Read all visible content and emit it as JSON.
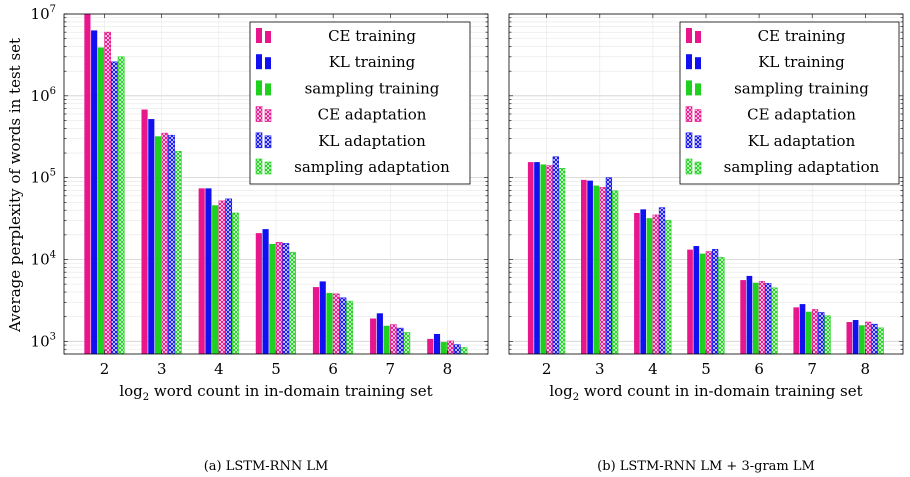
{
  "y_axis_label": "Average perplexity of words in test set",
  "legend": {
    "entries": [
      {
        "label": "CE training",
        "color": "#e8168c",
        "pattern": "solid"
      },
      {
        "label": "KL training",
        "color": "#1010f0",
        "pattern": "solid"
      },
      {
        "label": "sampling training",
        "color": "#1fd01f",
        "pattern": "solid"
      },
      {
        "label": "CE adaptation",
        "color": "#e8168c",
        "pattern": "crosshatch"
      },
      {
        "label": "KL adaptation",
        "color": "#1010f0",
        "pattern": "crosshatch"
      },
      {
        "label": "sampling adaptation",
        "color": "#1fd01f",
        "pattern": "crosshatch"
      }
    ]
  },
  "chart_data": [
    {
      "type": "bar",
      "caption": "(a) LSTM-RNN LM",
      "xlabel_main": "log",
      "xlabel_sub": "2",
      "xlabel_rest": " word count in in-domain training set",
      "ylabel": "Average perplexity of words in test set",
      "yscale": "log",
      "ylim": [
        700,
        10000000
      ],
      "grid": true,
      "legend_position": "top-right",
      "categories": [
        "2",
        "3",
        "4",
        "5",
        "6",
        "7",
        "8"
      ],
      "series": [
        {
          "name": "CE training",
          "values": [
            10000000,
            680000,
            74000,
            21000,
            4600,
            1900,
            1070
          ]
        },
        {
          "name": "KL training",
          "values": [
            6300000,
            520000,
            74000,
            23500,
            5400,
            2200,
            1230
          ]
        },
        {
          "name": "sampling training",
          "values": [
            3900000,
            320000,
            46000,
            15500,
            3900,
            1550,
            980
          ]
        },
        {
          "name": "CE adaptation",
          "values": [
            6000000,
            350000,
            52000,
            16200,
            3800,
            1600,
            1010
          ]
        },
        {
          "name": "KL adaptation",
          "values": [
            2600000,
            330000,
            55000,
            15700,
            3400,
            1450,
            910
          ]
        },
        {
          "name": "sampling adaptation",
          "values": [
            3000000,
            210000,
            37000,
            12200,
            3100,
            1280,
            840
          ]
        }
      ]
    },
    {
      "type": "bar",
      "caption": "(b) LSTM-RNN LM + 3-gram LM",
      "xlabel_main": "log",
      "xlabel_sub": "2",
      "xlabel_rest": " word count in in-domain training set",
      "ylabel": "",
      "yscale": "log",
      "ylim": [
        700,
        10000000
      ],
      "grid": true,
      "legend_position": "top-right",
      "categories": [
        "2",
        "3",
        "4",
        "5",
        "6",
        "7",
        "8"
      ],
      "series": [
        {
          "name": "CE training",
          "values": [
            155000,
            94000,
            37000,
            13200,
            5600,
            2600,
            1720
          ]
        },
        {
          "name": "KL training",
          "values": [
            155000,
            92000,
            41000,
            14600,
            6300,
            2850,
            1820
          ]
        },
        {
          "name": "sampling training",
          "values": [
            145000,
            80000,
            32000,
            11800,
            5200,
            2300,
            1570
          ]
        },
        {
          "name": "CE adaptation",
          "values": [
            140000,
            76000,
            35000,
            12500,
            5400,
            2450,
            1720
          ]
        },
        {
          "name": "KL adaptation",
          "values": [
            180000,
            100000,
            43000,
            13300,
            5100,
            2250,
            1620
          ]
        },
        {
          "name": "sampling adaptation",
          "values": [
            130000,
            69000,
            30000,
            10600,
            4500,
            2050,
            1460
          ]
        }
      ]
    }
  ]
}
